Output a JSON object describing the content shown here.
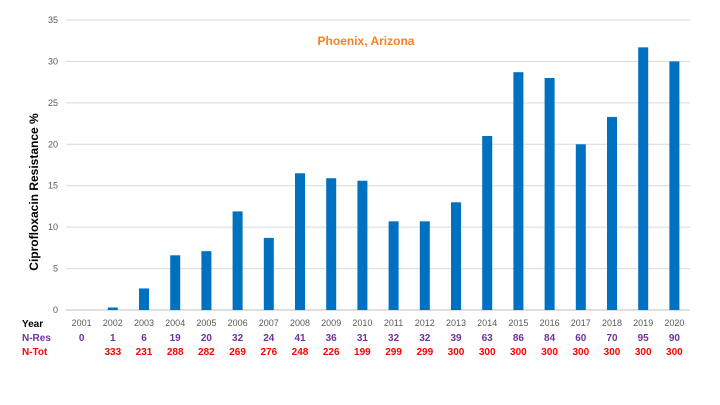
{
  "chart_data": {
    "type": "bar",
    "title": "Phoenix, Arizona",
    "ylabel": "Ciprofloxacin Resistance %",
    "xlabel": "",
    "ylim": [
      0,
      35
    ],
    "yticks": [
      0,
      5,
      10,
      15,
      20,
      25,
      30,
      35
    ],
    "grid": true,
    "categories": [
      "2001",
      "2002",
      "2003",
      "2004",
      "2005",
      "2006",
      "2007",
      "2008",
      "2009",
      "2010",
      "2011",
      "2012",
      "2013",
      "2014",
      "2015",
      "2016",
      "2017",
      "2018",
      "2019",
      "2020"
    ],
    "values": [
      0,
      0.3,
      2.6,
      6.6,
      7.1,
      11.9,
      8.7,
      16.5,
      15.9,
      15.6,
      10.7,
      10.7,
      13.0,
      21.0,
      28.7,
      28.0,
      20.0,
      23.3,
      31.7,
      30.0
    ],
    "colors": {
      "bar": "#0070c0",
      "title": "#f58220",
      "nres": "#7030a0",
      "ntot": "#ff0000",
      "year": "#000000"
    },
    "table": {
      "year_label": "Year",
      "nres_label": "N-Res",
      "ntot_label": "N-Tot",
      "nres": [
        "0",
        "1",
        "6",
        "19",
        "20",
        "32",
        "24",
        "41",
        "36",
        "31",
        "32",
        "32",
        "39",
        "63",
        "86",
        "84",
        "60",
        "70",
        "95",
        "90"
      ],
      "ntot": [
        "",
        "333",
        "231",
        "288",
        "282",
        "269",
        "276",
        "248",
        "226",
        "199",
        "299",
        "299",
        "300",
        "300",
        "300",
        "300",
        "300",
        "300",
        "300",
        "300"
      ]
    }
  }
}
